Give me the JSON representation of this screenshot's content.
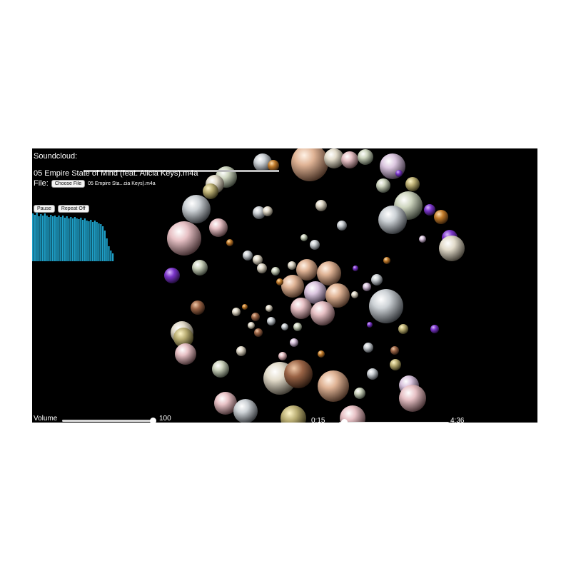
{
  "soundcloud": {
    "label": "Soundcloud:",
    "value": ""
  },
  "track": {
    "title": "05 Empire State of Mind (feat. Alicia Keys).m4a"
  },
  "file": {
    "label": "File:",
    "button_label": "Choose File",
    "selected_name": "05 Empire Sta...cia Keys).m4a"
  },
  "controls": {
    "pause_label": "Pause",
    "repeat_label": "Repeat Off"
  },
  "spectrum": {
    "color": "#1ea0c8",
    "levels": [
      0.96,
      0.93,
      0.97,
      0.9,
      0.94,
      0.91,
      0.95,
      0.92,
      0.89,
      0.93,
      0.9,
      0.92,
      0.88,
      0.91,
      0.89,
      0.92,
      0.87,
      0.9,
      0.86,
      0.89,
      0.85,
      0.88,
      0.86,
      0.84,
      0.87,
      0.83,
      0.85,
      0.82,
      0.8,
      0.83,
      0.79,
      0.81,
      0.78,
      0.76,
      0.74,
      0.7,
      0.62,
      0.45,
      0.3,
      0.22,
      0.15
    ]
  },
  "volume": {
    "label": "Volume",
    "value": "100",
    "level": 1.0
  },
  "playback": {
    "current": "0:15",
    "duration": "4:36",
    "progress": 0.055
  }
}
